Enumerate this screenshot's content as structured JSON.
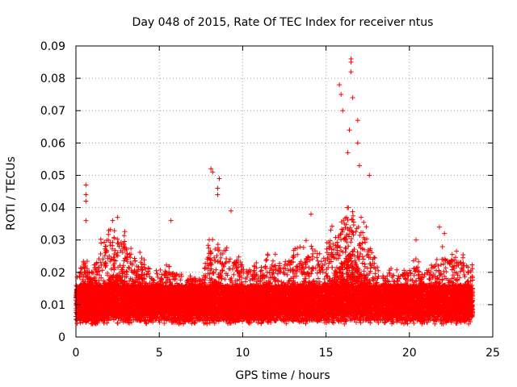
{
  "chart_data": {
    "type": "scatter",
    "title": "Day 048 of 2015, Rate Of TEC Index for receiver ntus",
    "xlabel": "GPS time / hours",
    "ylabel": "ROTI / TECUs",
    "xlim": [
      0,
      25
    ],
    "ylim": [
      0,
      0.09
    ],
    "xticks": [
      0,
      5,
      10,
      15,
      20,
      25
    ],
    "xtick_labels": [
      "0",
      "5",
      "10",
      "15",
      "20",
      "25"
    ],
    "yticks": [
      0,
      0.01,
      0.02,
      0.03,
      0.04,
      0.05,
      0.06,
      0.07,
      0.08,
      0.09
    ],
    "ytick_labels": [
      "0",
      "0.01",
      "0.02",
      "0.03",
      "0.04",
      "0.05",
      "0.06",
      "0.07",
      "0.08",
      "0.09"
    ],
    "grid": true,
    "marker": "+",
    "color": "#ff0000",
    "data_range_x": [
      0,
      23.8
    ],
    "baseline_band": [
      0.005,
      0.02
    ],
    "notable_points": [
      {
        "x": 0.6,
        "y": 0.047
      },
      {
        "x": 0.6,
        "y": 0.044
      },
      {
        "x": 0.6,
        "y": 0.042
      },
      {
        "x": 0.6,
        "y": 0.036
      },
      {
        "x": 2.5,
        "y": 0.037
      },
      {
        "x": 2.2,
        "y": 0.036
      },
      {
        "x": 5.7,
        "y": 0.036
      },
      {
        "x": 8.1,
        "y": 0.052
      },
      {
        "x": 8.2,
        "y": 0.051
      },
      {
        "x": 8.6,
        "y": 0.049
      },
      {
        "x": 8.5,
        "y": 0.046
      },
      {
        "x": 8.5,
        "y": 0.044
      },
      {
        "x": 9.3,
        "y": 0.039
      },
      {
        "x": 14.1,
        "y": 0.038
      },
      {
        "x": 15.8,
        "y": 0.078
      },
      {
        "x": 15.9,
        "y": 0.075
      },
      {
        "x": 16.0,
        "y": 0.07
      },
      {
        "x": 16.5,
        "y": 0.086
      },
      {
        "x": 16.5,
        "y": 0.085
      },
      {
        "x": 16.5,
        "y": 0.082
      },
      {
        "x": 16.6,
        "y": 0.074
      },
      {
        "x": 16.4,
        "y": 0.064
      },
      {
        "x": 16.3,
        "y": 0.057
      },
      {
        "x": 16.9,
        "y": 0.067
      },
      {
        "x": 16.9,
        "y": 0.06
      },
      {
        "x": 17.6,
        "y": 0.05
      },
      {
        "x": 17.0,
        "y": 0.053
      },
      {
        "x": 20.4,
        "y": 0.03
      },
      {
        "x": 21.8,
        "y": 0.034
      },
      {
        "x": 22.1,
        "y": 0.032
      }
    ],
    "activity_profile": [
      [
        0,
        0.01
      ],
      [
        0.5,
        0.014
      ],
      [
        1.0,
        0.012
      ],
      [
        1.5,
        0.016
      ],
      [
        2.0,
        0.018
      ],
      [
        2.5,
        0.02
      ],
      [
        3.0,
        0.017
      ],
      [
        3.5,
        0.015
      ],
      [
        4.0,
        0.014
      ],
      [
        4.5,
        0.012
      ],
      [
        5.0,
        0.011
      ],
      [
        5.5,
        0.012
      ],
      [
        6.0,
        0.011
      ],
      [
        6.5,
        0.01
      ],
      [
        7.0,
        0.01
      ],
      [
        7.5,
        0.01
      ],
      [
        8.0,
        0.016
      ],
      [
        8.5,
        0.018
      ],
      [
        9.0,
        0.015
      ],
      [
        9.5,
        0.014
      ],
      [
        10.0,
        0.013
      ],
      [
        10.5,
        0.012
      ],
      [
        11.0,
        0.013
      ],
      [
        11.5,
        0.014
      ],
      [
        12.0,
        0.014
      ],
      [
        12.5,
        0.014
      ],
      [
        13.0,
        0.015
      ],
      [
        13.5,
        0.015
      ],
      [
        14.0,
        0.017
      ],
      [
        14.5,
        0.016
      ],
      [
        15.0,
        0.016
      ],
      [
        15.5,
        0.019
      ],
      [
        16.0,
        0.024
      ],
      [
        16.5,
        0.026
      ],
      [
        17.0,
        0.021
      ],
      [
        17.5,
        0.018
      ],
      [
        18.0,
        0.014
      ],
      [
        18.5,
        0.012
      ],
      [
        19.0,
        0.011
      ],
      [
        19.5,
        0.011
      ],
      [
        20.0,
        0.012
      ],
      [
        20.5,
        0.013
      ],
      [
        21.0,
        0.012
      ],
      [
        21.5,
        0.013
      ],
      [
        22.0,
        0.015
      ],
      [
        22.5,
        0.014
      ],
      [
        23.0,
        0.014
      ],
      [
        23.5,
        0.013
      ],
      [
        23.8,
        0.012
      ]
    ]
  }
}
